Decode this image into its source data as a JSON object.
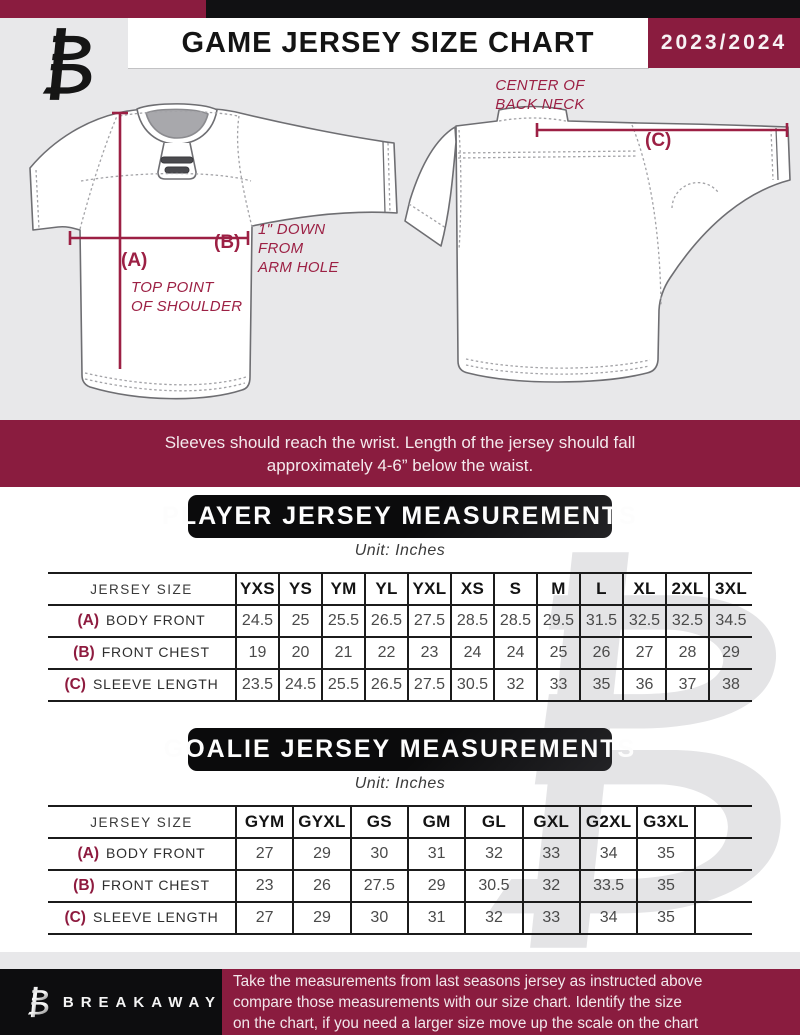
{
  "header": {
    "title": "GAME JERSEY SIZE CHART",
    "season": "2023/2024"
  },
  "diagram": {
    "front": {
      "label_a": "(A)",
      "label_b": "(B)",
      "note_a": [
        "TOP POINT",
        "OF SHOULDER"
      ],
      "note_b": [
        "1\" DOWN",
        "FROM",
        "ARM HOLE"
      ]
    },
    "back": {
      "label_c": "(C)",
      "note_c": [
        "CENTER OF",
        "BACK NECK"
      ]
    }
  },
  "notice": {
    "line1": "Sleeves should reach the wrist. Length of the jersey should fall",
    "line2": "approximately 4-6” below the waist."
  },
  "player_table": {
    "banner": "PLAYER JERSEY MEASUREMENTS",
    "unit": "Unit: Inches",
    "corner_label": "JERSEY SIZE",
    "sizes": [
      "YXS",
      "YS",
      "YM",
      "YL",
      "YXL",
      "XS",
      "S",
      "M",
      "L",
      "XL",
      "2XL",
      "3XL"
    ],
    "rows": [
      {
        "key": "(A)",
        "label": "BODY FRONT",
        "values": [
          "24.5",
          "25",
          "25.5",
          "26.5",
          "27.5",
          "28.5",
          "28.5",
          "29.5",
          "31.5",
          "32.5",
          "32.5",
          "34.5"
        ]
      },
      {
        "key": "(B)",
        "label": "FRONT CHEST",
        "values": [
          "19",
          "20",
          "21",
          "22",
          "23",
          "24",
          "24",
          "25",
          "26",
          "27",
          "28",
          "29"
        ]
      },
      {
        "key": "(C)",
        "label": "SLEEVE LENGTH",
        "values": [
          "23.5",
          "24.5",
          "25.5",
          "26.5",
          "27.5",
          "30.5",
          "32",
          "33",
          "35",
          "36",
          "37",
          "38"
        ]
      }
    ]
  },
  "goalie_table": {
    "banner": "GOALIE JERSEY MEASUREMENTS",
    "unit": "Unit: Inches",
    "corner_label": "JERSEY SIZE",
    "sizes": [
      "GYM",
      "GYXL",
      "GS",
      "GM",
      "GL",
      "GXL",
      "G2XL",
      "G3XL",
      ""
    ],
    "rows": [
      {
        "key": "(A)",
        "label": "BODY FRONT",
        "values": [
          "27",
          "29",
          "30",
          "31",
          "32",
          "33",
          "34",
          "35",
          ""
        ]
      },
      {
        "key": "(B)",
        "label": "FRONT CHEST",
        "values": [
          "23",
          "26",
          "27.5",
          "29",
          "30.5",
          "32",
          "33.5",
          "35",
          ""
        ]
      },
      {
        "key": "(C)",
        "label": "SLEEVE LENGTH",
        "values": [
          "27",
          "29",
          "30",
          "31",
          "32",
          "33",
          "34",
          "35",
          ""
        ]
      }
    ]
  },
  "footer": {
    "brand": "BREAKAWAY",
    "lines": [
      "Take the measurements from last seasons jersey as instructed above",
      "compare those measurements  with our size chart. Identify the size",
      "on the chart, if you need a larger size move up the scale on the chart"
    ]
  },
  "colors": {
    "maroon": "#8a1c3f",
    "annotation": "#9c2044",
    "black": "#111113",
    "page_gray": "#e8e8ea"
  }
}
